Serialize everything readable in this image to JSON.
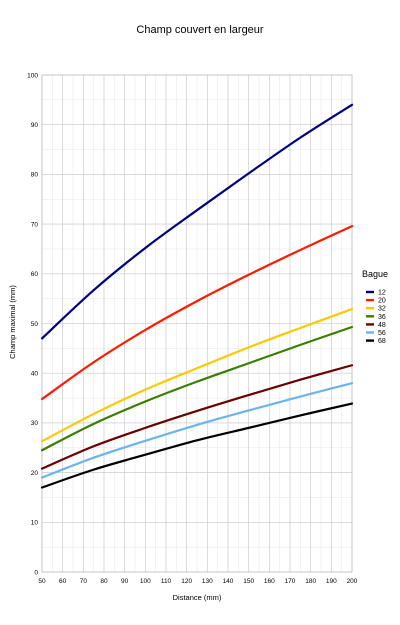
{
  "chart_data": {
    "type": "line",
    "title": "Champ couvert en largeur",
    "xlabel": "Distance (mm)",
    "ylabel": "Champ maximal (mm)",
    "xlim": [
      50,
      200
    ],
    "ylim": [
      0,
      100
    ],
    "xticks": [
      50,
      60,
      70,
      80,
      90,
      100,
      110,
      120,
      130,
      140,
      150,
      160,
      170,
      180,
      190,
      200
    ],
    "yticks": [
      0,
      10,
      20,
      30,
      40,
      50,
      60,
      70,
      80,
      90,
      100
    ],
    "grid": true,
    "legend": {
      "title": "Bague",
      "placement": "right"
    },
    "x": [
      50,
      75,
      100,
      125,
      150,
      175,
      200
    ],
    "series": [
      {
        "name": "12",
        "color": "#000080",
        "values": [
          47.0,
          56.7,
          65.2,
          72.8,
          80.2,
          87.4,
          94.0
        ]
      },
      {
        "name": "20",
        "color": "#ff1a00",
        "values": [
          34.8,
          42.2,
          48.7,
          54.5,
          59.8,
          64.8,
          69.6
        ]
      },
      {
        "name": "32",
        "color": "#ffc800",
        "values": [
          26.3,
          31.8,
          36.7,
          41.0,
          45.2,
          49.1,
          52.9
        ]
      },
      {
        "name": "36",
        "color": "#3a7f00",
        "values": [
          24.5,
          29.8,
          34.3,
          38.3,
          42.0,
          45.7,
          49.3
        ]
      },
      {
        "name": "48",
        "color": "#6b0000",
        "values": [
          20.8,
          25.3,
          29.0,
          32.4,
          35.6,
          38.7,
          41.6
        ]
      },
      {
        "name": "56",
        "color": "#6ab4f0",
        "values": [
          19.0,
          23.0,
          26.4,
          29.6,
          32.5,
          35.3,
          38.0
        ]
      },
      {
        "name": "68",
        "color": "#000000",
        "values": [
          17.0,
          20.6,
          23.6,
          26.5,
          29.0,
          31.5,
          33.9
        ]
      }
    ]
  }
}
